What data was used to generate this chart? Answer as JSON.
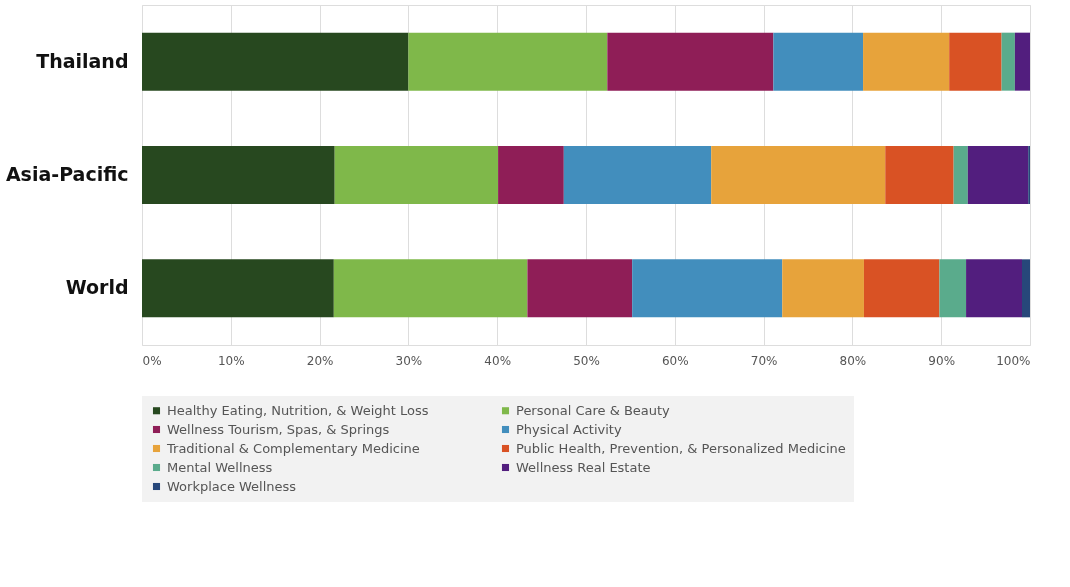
{
  "chart_data": {
    "type": "bar",
    "orientation": "horizontal",
    "stacked": true,
    "categories": [
      "Thailand",
      "Asia-Pacific",
      "World"
    ],
    "series": [
      {
        "name": "Healthy Eating, Nutrition, & Weight Loss",
        "color": "#27481f",
        "values": [
          30.0,
          21.7,
          21.6
        ]
      },
      {
        "name": "Personal Care & Beauty",
        "color": "#7fb84a",
        "values": [
          22.4,
          18.4,
          21.8
        ]
      },
      {
        "name": "Wellness Tourism, Spas, & Springs",
        "color": "#8f1e57",
        "values": [
          18.7,
          7.4,
          11.8
        ]
      },
      {
        "name": "Physical Activity",
        "color": "#428ebd",
        "values": [
          10.1,
          16.6,
          16.9
        ]
      },
      {
        "name": "Traditional & Complementary Medicine",
        "color": "#e7a33b",
        "values": [
          9.7,
          19.6,
          9.2
        ]
      },
      {
        "name": "Public Health, Prevention, & Personalized Medicine",
        "color": "#d95224",
        "values": [
          5.9,
          7.7,
          8.5
        ]
      },
      {
        "name": "Mental Wellness",
        "color": "#5aab8c",
        "values": [
          1.5,
          1.6,
          3.0
        ]
      },
      {
        "name": "Wellness Real Estate",
        "color": "#521e7e",
        "values": [
          1.7,
          6.8,
          6.3
        ]
      },
      {
        "name": "Workplace Wellness",
        "color": "#27477a",
        "values": [
          0,
          0.2,
          0.9
        ]
      }
    ],
    "xlim": [
      0,
      100
    ],
    "xticks": [
      {
        "value": 0,
        "label": "0%"
      },
      {
        "value": 10,
        "label": "10%"
      },
      {
        "value": 20,
        "label": "20%"
      },
      {
        "value": 30,
        "label": "30%"
      },
      {
        "value": 40,
        "label": "40%"
      },
      {
        "value": 50,
        "label": "50%"
      },
      {
        "value": 60,
        "label": "60%"
      },
      {
        "value": 70,
        "label": "70%"
      },
      {
        "value": 80,
        "label": "80%"
      },
      {
        "value": 90,
        "label": "90%"
      },
      {
        "value": 100,
        "label": "100%"
      }
    ],
    "grid": "x",
    "legend": "bottom"
  }
}
